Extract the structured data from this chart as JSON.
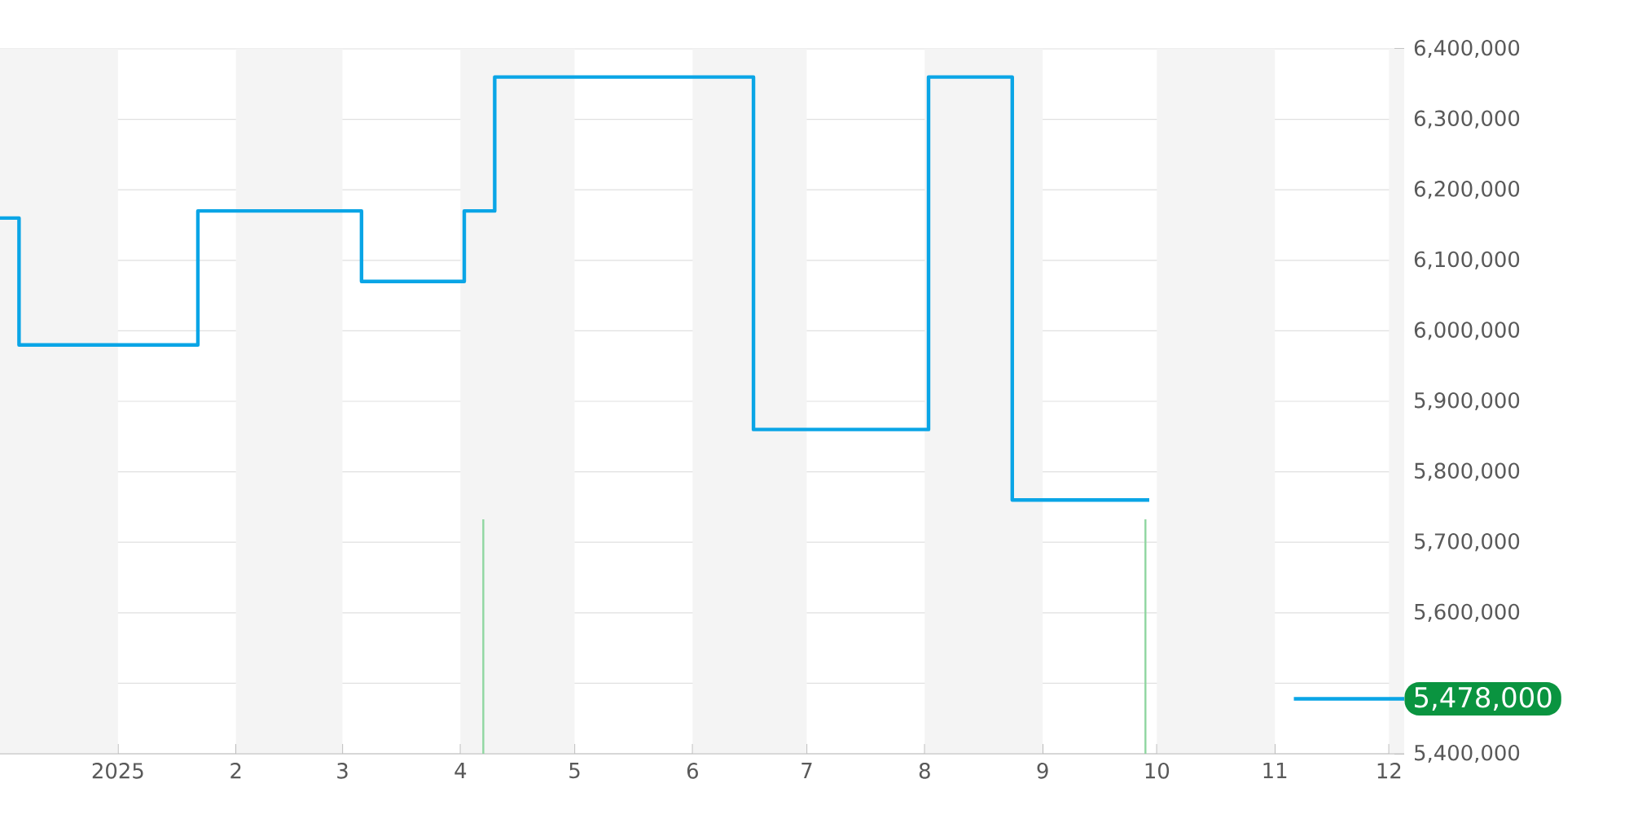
{
  "chart_data": {
    "type": "step",
    "xlim": [
      "2024-12-01",
      "2025-12-05"
    ],
    "xticks": [
      {
        "value": "2025-01-01",
        "label": "2025"
      },
      {
        "value": "2025-02-01",
        "label": "2"
      },
      {
        "value": "2025-03-01",
        "label": "3"
      },
      {
        "value": "2025-04-01",
        "label": "4"
      },
      {
        "value": "2025-05-01",
        "label": "5"
      },
      {
        "value": "2025-06-01",
        "label": "6"
      },
      {
        "value": "2025-07-01",
        "label": "7"
      },
      {
        "value": "2025-08-01",
        "label": "8"
      },
      {
        "value": "2025-09-01",
        "label": "9"
      },
      {
        "value": "2025-10-01",
        "label": "10"
      },
      {
        "value": "2025-11-01",
        "label": "11"
      },
      {
        "value": "2025-12-01",
        "label": "12"
      }
    ],
    "ylim": [
      5400000,
      6400000
    ],
    "yticks": [
      {
        "value": 5400000,
        "label": "5,400,000"
      },
      {
        "value": 5500000,
        "label": null
      },
      {
        "value": 5600000,
        "label": "5,600,000"
      },
      {
        "value": 5700000,
        "label": "5,700,000"
      },
      {
        "value": 5800000,
        "label": "5,800,000"
      },
      {
        "value": 5900000,
        "label": "5,900,000"
      },
      {
        "value": 6000000,
        "label": "6,000,000"
      },
      {
        "value": 6100000,
        "label": "6,100,000"
      },
      {
        "value": 6200000,
        "label": "6,200,000"
      },
      {
        "value": 6300000,
        "label": "6,300,000"
      },
      {
        "value": 6400000,
        "label": "6,400,000"
      }
    ],
    "grid": "y",
    "ref_lines": [
      {
        "axis": "x",
        "value": "2025-04-07",
        "color": "#8fd6a0"
      },
      {
        "axis": "x",
        "value": "2025-09-28",
        "color": "#8fd6a0"
      }
    ],
    "bands": [
      {
        "axis": "x",
        "from": "2024-12-01",
        "to": "2025-01-01",
        "color": "#f4f4f4"
      },
      {
        "axis": "x",
        "from": "2025-02-01",
        "to": "2025-03-01",
        "color": "#f4f4f4"
      },
      {
        "axis": "x",
        "from": "2025-04-01",
        "to": "2025-05-01",
        "color": "#f4f4f4"
      },
      {
        "axis": "x",
        "from": "2025-06-01",
        "to": "2025-07-01",
        "color": "#f4f4f4"
      },
      {
        "axis": "x",
        "from": "2025-08-01",
        "to": "2025-09-01",
        "color": "#f4f4f4"
      },
      {
        "axis": "x",
        "from": "2025-10-01",
        "to": "2025-11-01",
        "color": "#f4f4f4"
      },
      {
        "axis": "x",
        "from": "2025-12-01",
        "to": "2025-12-05",
        "color": "#f4f4f4"
      }
    ],
    "series": [
      {
        "color": "#0aa5e6",
        "x": [
          "2024-12-01",
          "2024-12-06",
          "2025-01-22",
          "2025-03-06",
          "2025-04-02",
          "2025-04-10",
          "2025-06-17",
          "2025-08-02",
          "2025-08-24",
          "2025-09-29"
        ],
        "values": [
          6160000,
          5980000,
          6170000,
          6070000,
          6170000,
          6360000,
          5860000,
          6360000,
          5760000,
          5760000
        ]
      },
      {
        "type": "line",
        "color": "#0aa5e6",
        "x": [
          "2025-11-06",
          "2025-12-05"
        ],
        "values": [
          5478000,
          5478000
        ],
        "value_labels": [
          null,
          "5,478,000"
        ]
      }
    ]
  }
}
